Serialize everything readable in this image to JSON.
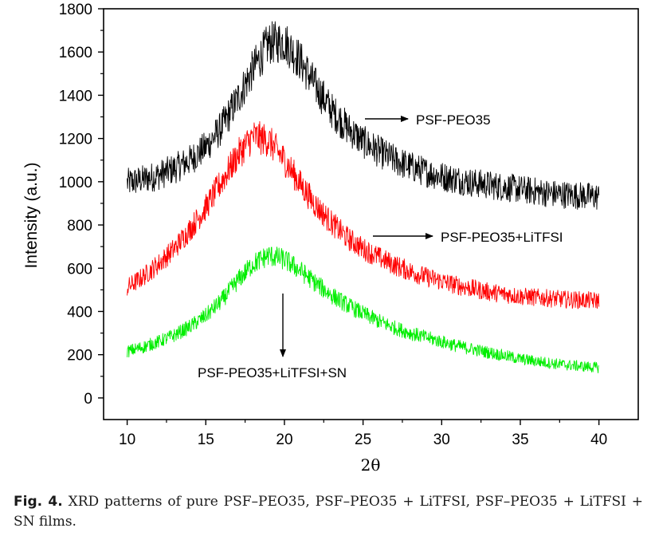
{
  "figure": {
    "caption_label": "Fig. 4.",
    "caption_text": "XRD patterns of pure PSF–PEO35, PSF–PEO35 + LiTFSI, PSF–PEO35 + LiTFSI + SN films."
  },
  "chart_data": {
    "type": "line",
    "xlabel": "2θ",
    "ylabel": "Intensity (a.u.)",
    "xlim": [
      8.5,
      42.5
    ],
    "ylim": [
      -100,
      1800
    ],
    "xticks": [
      10,
      15,
      20,
      25,
      30,
      35,
      40
    ],
    "yticks": [
      0,
      200,
      400,
      600,
      800,
      1000,
      1200,
      1400,
      1600,
      1800
    ],
    "grid": false,
    "series": [
      {
        "name": "PSF-PEO35",
        "color": "#000000",
        "x": [
          10,
          11,
          12,
          13,
          14,
          15,
          16,
          17,
          18,
          19,
          20,
          21,
          22,
          23,
          24,
          25,
          26,
          27,
          28,
          29,
          30,
          31,
          32,
          33,
          34,
          35,
          36,
          37,
          38,
          39,
          40
        ],
        "y": [
          995,
          1010,
          1030,
          1060,
          1100,
          1160,
          1250,
          1380,
          1520,
          1640,
          1650,
          1560,
          1440,
          1330,
          1250,
          1185,
          1140,
          1100,
          1070,
          1045,
          1025,
          1010,
          995,
          985,
          975,
          965,
          955,
          945,
          940,
          935,
          930
        ]
      },
      {
        "name": "PSF-PEO35+LiTFSI",
        "color": "#ff0000",
        "x": [
          10,
          11,
          12,
          13,
          14,
          15,
          16,
          17,
          18,
          19,
          20,
          21,
          22,
          23,
          24,
          25,
          26,
          27,
          28,
          29,
          30,
          31,
          32,
          33,
          34,
          35,
          36,
          37,
          38,
          39,
          40
        ],
        "y": [
          510,
          560,
          620,
          690,
          780,
          880,
          1000,
          1120,
          1210,
          1190,
          1100,
          990,
          890,
          810,
          740,
          690,
          650,
          615,
          585,
          560,
          540,
          520,
          505,
          490,
          480,
          470,
          465,
          460,
          455,
          452,
          450
        ]
      },
      {
        "name": "PSF-PEO35+LiTFSI+SN",
        "color": "#00ee00",
        "x": [
          10,
          11,
          12,
          13,
          14,
          15,
          16,
          17,
          18,
          19,
          20,
          21,
          22,
          23,
          24,
          25,
          26,
          27,
          28,
          29,
          30,
          31,
          32,
          33,
          34,
          35,
          36,
          37,
          38,
          39,
          40
        ],
        "y": [
          215,
          235,
          260,
          290,
          330,
          380,
          450,
          540,
          620,
          660,
          640,
          590,
          530,
          475,
          430,
          390,
          355,
          325,
          300,
          280,
          260,
          240,
          225,
          210,
          195,
          180,
          170,
          160,
          152,
          146,
          140
        ]
      }
    ],
    "annotations": [
      {
        "text": "PSF-PEO35",
        "arrow": "right"
      },
      {
        "text": "PSF-PEO35+LiTFSI",
        "arrow": "right"
      },
      {
        "text": "PSF-PEO35+LiTFSI+SN",
        "arrow": "down"
      }
    ]
  }
}
